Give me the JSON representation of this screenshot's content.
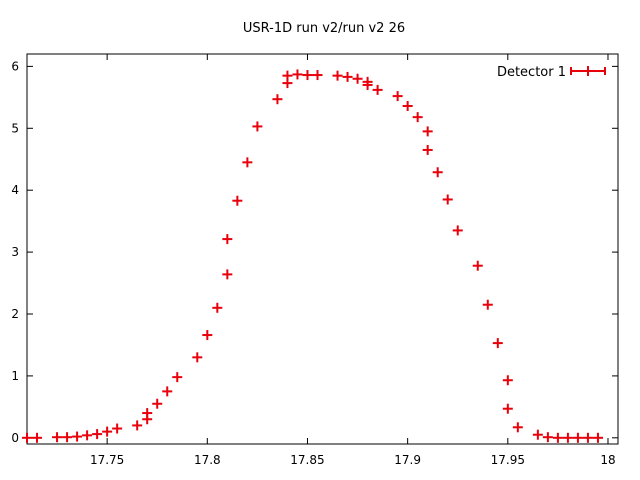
{
  "chart_data": {
    "type": "scatter",
    "title": "USR-1D run v2/run v2 26",
    "xlabel": "",
    "ylabel": "",
    "xlim": [
      17.71,
      18.005
    ],
    "ylim": [
      -0.1,
      6.2
    ],
    "grid": false,
    "legend_position": "top-right",
    "x_ticks": [
      {
        "value": 17.75,
        "label": "17.75"
      },
      {
        "value": 17.8,
        "label": "17.8"
      },
      {
        "value": 17.85,
        "label": "17.85"
      },
      {
        "value": 17.9,
        "label": "17.9"
      },
      {
        "value": 17.95,
        "label": "17.95"
      },
      {
        "value": 18.0,
        "label": "18"
      }
    ],
    "y_ticks": [
      {
        "value": 0,
        "label": "0"
      },
      {
        "value": 1,
        "label": "1"
      },
      {
        "value": 2,
        "label": "2"
      },
      {
        "value": 3,
        "label": "3"
      },
      {
        "value": 4,
        "label": "4"
      },
      {
        "value": 5,
        "label": "5"
      },
      {
        "value": 6,
        "label": "6"
      }
    ],
    "series": [
      {
        "name": "Detector 1",
        "color": "#e8000b",
        "marker": "plus-with-xerror",
        "points": [
          [
            17.71,
            0.0
          ],
          [
            17.715,
            0.0
          ],
          [
            17.725,
            0.01
          ],
          [
            17.73,
            0.01
          ],
          [
            17.735,
            0.02
          ],
          [
            17.74,
            0.04
          ],
          [
            17.745,
            0.06
          ],
          [
            17.75,
            0.1
          ],
          [
            17.755,
            0.15
          ],
          [
            17.765,
            0.2
          ],
          [
            17.77,
            0.3
          ],
          [
            17.77,
            0.4
          ],
          [
            17.775,
            0.55
          ],
          [
            17.78,
            0.75
          ],
          [
            17.785,
            0.98
          ],
          [
            17.795,
            1.3
          ],
          [
            17.8,
            1.66
          ],
          [
            17.805,
            2.1
          ],
          [
            17.81,
            2.64
          ],
          [
            17.81,
            3.21
          ],
          [
            17.815,
            3.83
          ],
          [
            17.82,
            4.45
          ],
          [
            17.825,
            5.03
          ],
          [
            17.835,
            5.47
          ],
          [
            17.84,
            5.73
          ],
          [
            17.84,
            5.85
          ],
          [
            17.845,
            5.87
          ],
          [
            17.85,
            5.86
          ],
          [
            17.855,
            5.86
          ],
          [
            17.865,
            5.85
          ],
          [
            17.87,
            5.83
          ],
          [
            17.875,
            5.8
          ],
          [
            17.88,
            5.75
          ],
          [
            17.88,
            5.7
          ],
          [
            17.885,
            5.62
          ],
          [
            17.895,
            5.52
          ],
          [
            17.9,
            5.36
          ],
          [
            17.905,
            5.18
          ],
          [
            17.91,
            4.95
          ],
          [
            17.91,
            4.65
          ],
          [
            17.915,
            4.29
          ],
          [
            17.92,
            3.85
          ],
          [
            17.925,
            3.35
          ],
          [
            17.935,
            2.78
          ],
          [
            17.94,
            2.15
          ],
          [
            17.945,
            1.53
          ],
          [
            17.95,
            0.93
          ],
          [
            17.95,
            0.47
          ],
          [
            17.955,
            0.17
          ],
          [
            17.965,
            0.05
          ],
          [
            17.97,
            0.01
          ],
          [
            17.975,
            0.0
          ],
          [
            17.98,
            0.0
          ],
          [
            17.985,
            0.0
          ],
          [
            17.99,
            0.0
          ],
          [
            17.995,
            0.0
          ]
        ]
      }
    ]
  }
}
